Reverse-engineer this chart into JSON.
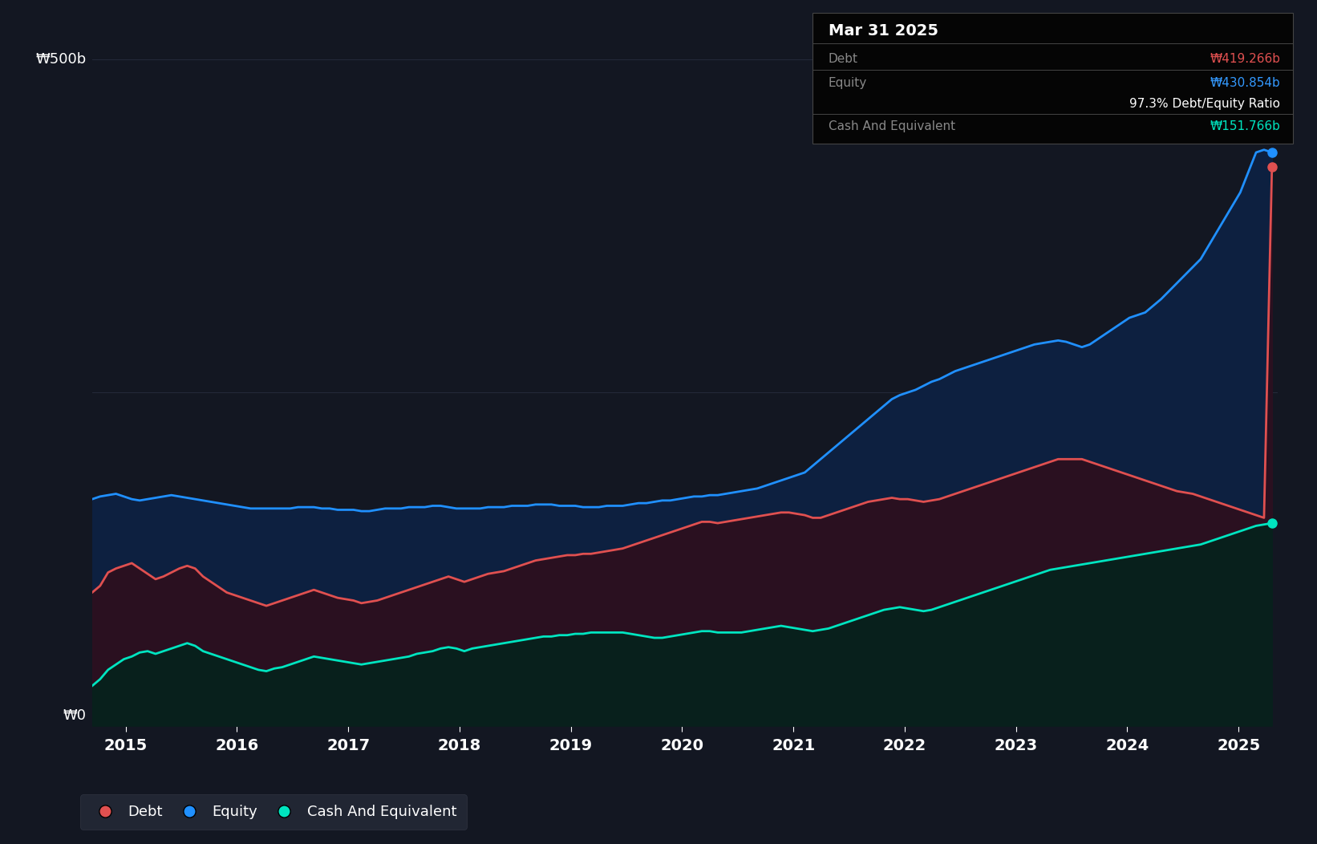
{
  "background_color": "#131722",
  "plot_bg_color": "#131722",
  "grid_color": "#252a3a",
  "title_box": {
    "date": "Mar 31 2025",
    "debt_label": "Debt",
    "debt_value": "₩419.266b",
    "equity_label": "Equity",
    "equity_value": "₩430.854b",
    "ratio_text": "97.3% Debt/Equity Ratio",
    "cash_label": "Cash And Equivalent",
    "cash_value": "₩151.766b",
    "bg_color": "#050505",
    "border_color": "#444444",
    "debt_color": "#e05050",
    "equity_color": "#3399ff",
    "ratio_color": "#ffffff",
    "cash_color": "#00e5c0",
    "label_color": "#888888",
    "date_color": "#ffffff"
  },
  "ylabel_text": "₩500b",
  "ylabel0_text": "₩0",
  "x_tick_labels": [
    "2015",
    "2016",
    "2017",
    "2018",
    "2019",
    "2020",
    "2021",
    "2022",
    "2023",
    "2024",
    "2025"
  ],
  "equity_line_color": "#2090ff",
  "debt_line_color": "#e05050",
  "cash_line_color": "#00e5c0",
  "equity_fill": "#0d2040",
  "debt_fill": "#2a1020",
  "cash_fill": "#08201c",
  "ylim": [
    0,
    500
  ],
  "equity_data": [
    170,
    172,
    173,
    174,
    172,
    170,
    169,
    170,
    171,
    172,
    173,
    172,
    171,
    170,
    169,
    168,
    167,
    166,
    165,
    164,
    163,
    163,
    163,
    163,
    163,
    163,
    164,
    164,
    164,
    163,
    163,
    162,
    162,
    162,
    161,
    161,
    162,
    163,
    163,
    163,
    164,
    164,
    164,
    165,
    165,
    164,
    163,
    163,
    163,
    163,
    164,
    164,
    164,
    165,
    165,
    165,
    166,
    166,
    166,
    165,
    165,
    165,
    164,
    164,
    164,
    165,
    165,
    165,
    166,
    167,
    167,
    168,
    169,
    169,
    170,
    171,
    172,
    172,
    173,
    173,
    174,
    175,
    176,
    177,
    178,
    180,
    182,
    184,
    186,
    188,
    190,
    195,
    200,
    205,
    210,
    215,
    220,
    225,
    230,
    235,
    240,
    245,
    248,
    250,
    252,
    255,
    258,
    260,
    263,
    266,
    268,
    270,
    272,
    274,
    276,
    278,
    280,
    282,
    284,
    286,
    287,
    288,
    289,
    288,
    286,
    284,
    286,
    290,
    294,
    298,
    302,
    306,
    308,
    310,
    315,
    320,
    326,
    332,
    338,
    344,
    350,
    360,
    370,
    380,
    390,
    400,
    415,
    430,
    432,
    430
  ],
  "debt_data": [
    100,
    105,
    115,
    118,
    120,
    122,
    118,
    114,
    110,
    112,
    115,
    118,
    120,
    118,
    112,
    108,
    104,
    100,
    98,
    96,
    94,
    92,
    90,
    92,
    94,
    96,
    98,
    100,
    102,
    100,
    98,
    96,
    95,
    94,
    92,
    93,
    94,
    96,
    98,
    100,
    102,
    104,
    106,
    108,
    110,
    112,
    110,
    108,
    110,
    112,
    114,
    115,
    116,
    118,
    120,
    122,
    124,
    125,
    126,
    127,
    128,
    128,
    129,
    129,
    130,
    131,
    132,
    133,
    135,
    137,
    139,
    141,
    143,
    145,
    147,
    149,
    151,
    153,
    153,
    152,
    153,
    154,
    155,
    156,
    157,
    158,
    159,
    160,
    160,
    159,
    158,
    156,
    156,
    158,
    160,
    162,
    164,
    166,
    168,
    169,
    170,
    171,
    170,
    170,
    169,
    168,
    169,
    170,
    172,
    174,
    176,
    178,
    180,
    182,
    184,
    186,
    188,
    190,
    192,
    194,
    196,
    198,
    200,
    200,
    200,
    200,
    198,
    196,
    194,
    192,
    190,
    188,
    186,
    184,
    182,
    180,
    178,
    176,
    175,
    174,
    172,
    170,
    168,
    166,
    164,
    162,
    160,
    158,
    156,
    419
  ],
  "cash_data": [
    30,
    35,
    42,
    46,
    50,
    52,
    55,
    56,
    54,
    56,
    58,
    60,
    62,
    60,
    56,
    54,
    52,
    50,
    48,
    46,
    44,
    42,
    41,
    43,
    44,
    46,
    48,
    50,
    52,
    51,
    50,
    49,
    48,
    47,
    46,
    47,
    48,
    49,
    50,
    51,
    52,
    54,
    55,
    56,
    58,
    59,
    58,
    56,
    58,
    59,
    60,
    61,
    62,
    63,
    64,
    65,
    66,
    67,
    67,
    68,
    68,
    69,
    69,
    70,
    70,
    70,
    70,
    70,
    69,
    68,
    67,
    66,
    66,
    67,
    68,
    69,
    70,
    71,
    71,
    70,
    70,
    70,
    70,
    71,
    72,
    73,
    74,
    75,
    74,
    73,
    72,
    71,
    72,
    73,
    75,
    77,
    79,
    81,
    83,
    85,
    87,
    88,
    89,
    88,
    87,
    86,
    87,
    89,
    91,
    93,
    95,
    97,
    99,
    101,
    103,
    105,
    107,
    109,
    111,
    113,
    115,
    117,
    118,
    119,
    120,
    121,
    122,
    123,
    124,
    125,
    126,
    127,
    128,
    129,
    130,
    131,
    132,
    133,
    134,
    135,
    136,
    138,
    140,
    142,
    144,
    146,
    148,
    150,
    151,
    152
  ],
  "n_points": 150,
  "legend": [
    {
      "label": "Debt",
      "color": "#e05050"
    },
    {
      "label": "Equity",
      "color": "#2090ff"
    },
    {
      "label": "Cash And Equivalent",
      "color": "#00e5c0"
    }
  ]
}
